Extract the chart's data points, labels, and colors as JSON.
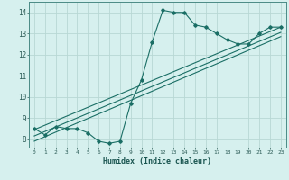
{
  "xlabel": "Humidex (Indice chaleur)",
  "background_color": "#d6f0ee",
  "plot_bg_color": "#d6f0ee",
  "grid_color": "#b8d8d4",
  "line_color": "#1a6e65",
  "spine_color": "#4a8a85",
  "xlim": [
    -0.5,
    23.5
  ],
  "ylim": [
    7.6,
    14.5
  ],
  "xticks": [
    0,
    1,
    2,
    3,
    4,
    5,
    6,
    7,
    8,
    9,
    10,
    11,
    12,
    13,
    14,
    15,
    16,
    17,
    18,
    19,
    20,
    21,
    22,
    23
  ],
  "yticks": [
    8,
    9,
    10,
    11,
    12,
    13,
    14
  ],
  "series_main": {
    "x": [
      0,
      1,
      2,
      3,
      4,
      5,
      6,
      7,
      8,
      9,
      10,
      11,
      12,
      13,
      14,
      15,
      16,
      17,
      18,
      19,
      20,
      21,
      22,
      23
    ],
    "y": [
      8.5,
      8.2,
      8.6,
      8.5,
      8.5,
      8.3,
      7.9,
      7.8,
      7.9,
      9.7,
      10.8,
      12.6,
      14.1,
      14.0,
      14.0,
      13.4,
      13.3,
      13.0,
      12.7,
      12.5,
      12.5,
      13.0,
      13.3,
      13.3
    ]
  },
  "series_lines": [
    {
      "x": [
        0,
        23
      ],
      "y": [
        8.45,
        13.3
      ]
    },
    {
      "x": [
        0,
        23
      ],
      "y": [
        8.15,
        13.05
      ]
    },
    {
      "x": [
        0,
        23
      ],
      "y": [
        7.9,
        12.85
      ]
    }
  ]
}
